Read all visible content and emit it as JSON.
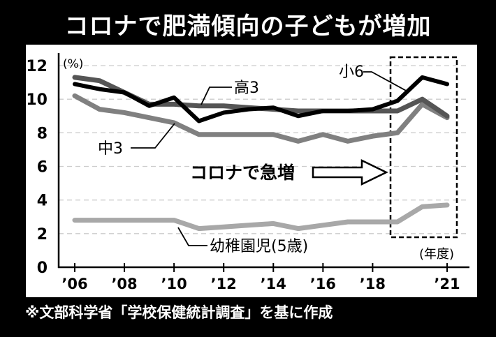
{
  "title": "コロナで肥満傾向の子どもが増加",
  "footnote": "※文部科学省「学校保健統計調査」を基に作成",
  "chart_data": {
    "type": "line",
    "title": "コロナで肥満傾向の子どもが増加",
    "ylabel": "(%)",
    "xlabel": "(年度)",
    "ylim": [
      0,
      12
    ],
    "yticks": [
      "0",
      "2",
      "4",
      "6",
      "8",
      "10",
      "12"
    ],
    "x": [
      2006,
      2007,
      2008,
      2009,
      2010,
      2011,
      2012,
      2013,
      2014,
      2015,
      2016,
      2017,
      2018,
      2019,
      2020,
      2021
    ],
    "xticks": [
      {
        "x": 2006,
        "label": "’06"
      },
      {
        "x": 2008,
        "label": "’08"
      },
      {
        "x": 2010,
        "label": "’10"
      },
      {
        "x": 2012,
        "label": "’12"
      },
      {
        "x": 2014,
        "label": "’14"
      },
      {
        "x": 2016,
        "label": "’16"
      },
      {
        "x": 2018,
        "label": "’18"
      },
      {
        "x": 2021,
        "label": "’21"
      }
    ],
    "grid": "horizontal dashed",
    "series": [
      {
        "name": "幼稚園児(5歳)",
        "color": "#a8a8a8",
        "values": [
          2.8,
          2.8,
          2.8,
          2.8,
          2.8,
          2.3,
          2.4,
          2.5,
          2.6,
          2.3,
          2.5,
          2.7,
          2.7,
          2.7,
          3.6,
          3.7
        ]
      },
      {
        "name": "中3",
        "color": "#808080",
        "values": [
          10.2,
          9.4,
          9.2,
          8.9,
          8.6,
          7.9,
          7.9,
          7.9,
          7.9,
          7.5,
          7.9,
          7.5,
          7.8,
          8.0,
          9.7,
          8.9
        ]
      },
      {
        "name": "高3",
        "color": "#555555",
        "values": [
          11.3,
          11.1,
          10.4,
          9.7,
          9.7,
          9.6,
          9.6,
          9.5,
          9.4,
          9.3,
          9.3,
          9.3,
          9.3,
          9.3,
          10.0,
          9.0
        ]
      },
      {
        "name": "小6",
        "color": "#000000",
        "values": [
          10.9,
          10.6,
          10.4,
          9.6,
          10.1,
          8.7,
          9.2,
          9.4,
          9.5,
          9.0,
          9.3,
          9.3,
          9.4,
          9.9,
          11.3,
          10.9
        ]
      }
    ],
    "annotations": {
      "highlight_range": [
        2019.5,
        2021.5
      ],
      "arrow_text": "コロナで急増"
    }
  }
}
